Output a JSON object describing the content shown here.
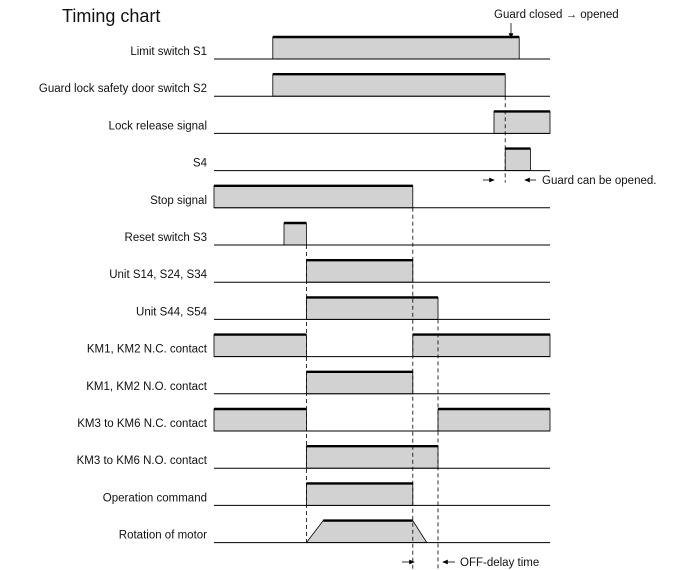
{
  "title": "Timing chart",
  "notes": {
    "guard_transition": "Guard closed → opened",
    "guard_can_open": "Guard can be opened.",
    "off_delay": "OFF-delay time"
  },
  "rows": [
    {
      "label": "Limit switch S1",
      "pulses": [
        [
          2.1,
          10.9
        ]
      ]
    },
    {
      "label": "Guard lock safety door switch S2",
      "pulses": [
        [
          2.1,
          10.4
        ]
      ]
    },
    {
      "label": "Lock release signal",
      "pulses": [
        [
          10.0,
          12.0
        ]
      ]
    },
    {
      "label": "S4",
      "pulses": [
        [
          10.4,
          11.3
        ]
      ]
    },
    {
      "label": "Stop signal",
      "pulses": [
        [
          0,
          7.1
        ]
      ]
    },
    {
      "label": "Reset switch S3",
      "pulses": [
        [
          2.5,
          3.3
        ]
      ]
    },
    {
      "label": "Unit S14, S24, S34",
      "pulses": [
        [
          3.3,
          7.1
        ]
      ]
    },
    {
      "label": "Unit S44, S54",
      "pulses": [
        [
          3.3,
          8.0
        ]
      ]
    },
    {
      "label": "KM1, KM2 N.C. contact",
      "pulses": [
        [
          0,
          3.3
        ],
        [
          7.1,
          12.0
        ]
      ]
    },
    {
      "label": "KM1, KM2 N.O. contact",
      "pulses": [
        [
          3.3,
          7.1
        ]
      ]
    },
    {
      "label": "KM3 to KM6 N.C. contact",
      "pulses": [
        [
          0,
          3.3
        ],
        [
          8.0,
          12.0
        ]
      ]
    },
    {
      "label": "KM3 to KM6 N.O. contact",
      "pulses": [
        [
          3.3,
          8.0
        ]
      ]
    },
    {
      "label": "Operation command",
      "pulses": [
        [
          3.3,
          7.1
        ]
      ]
    },
    {
      "label": "Rotation of motor",
      "trapezoid": [
        3.3,
        3.9,
        7.1,
        7.6
      ]
    }
  ]
}
